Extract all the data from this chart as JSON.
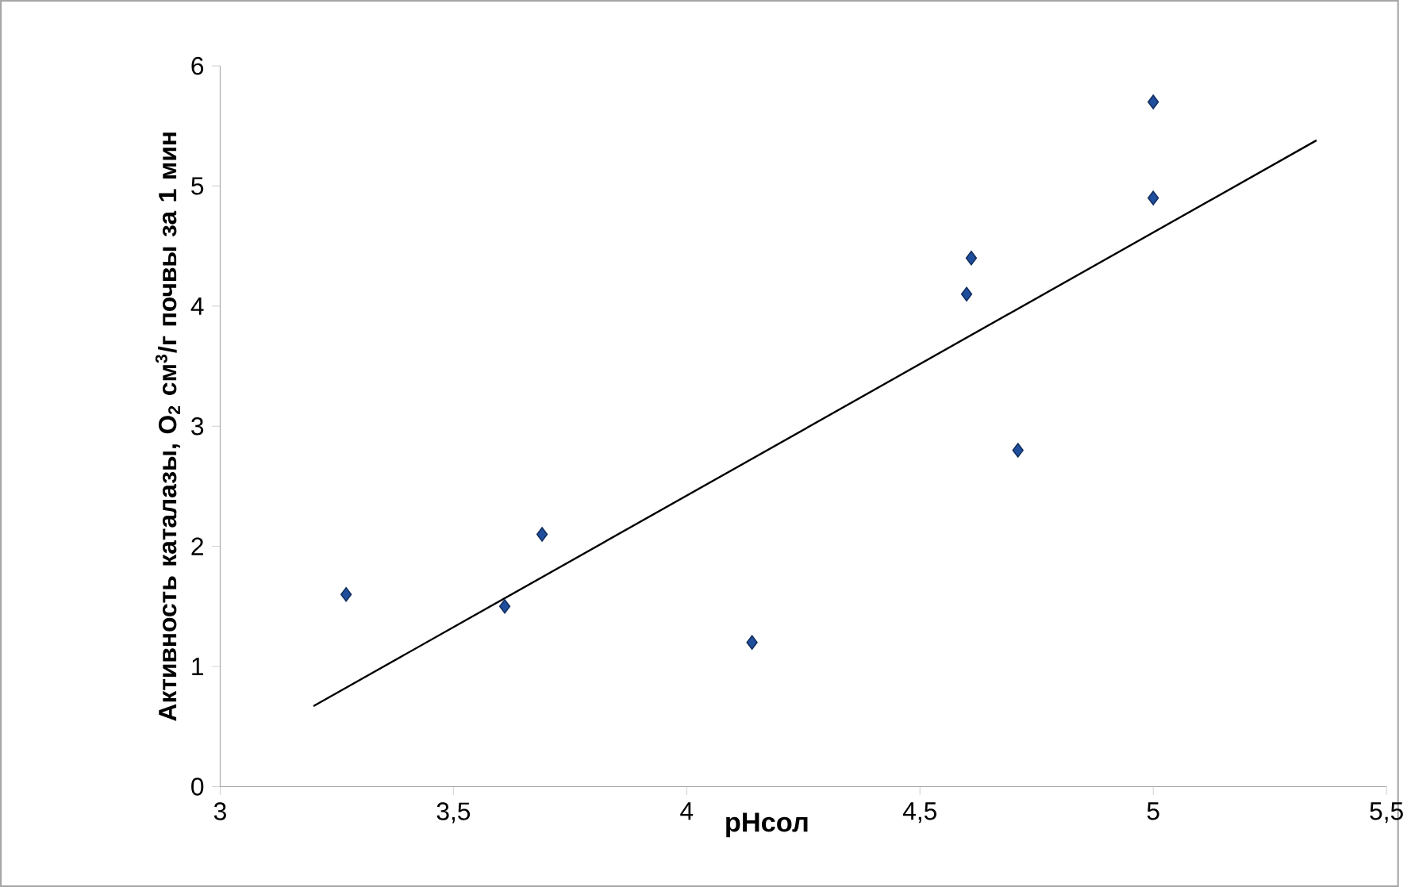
{
  "chart_data": {
    "type": "scatter",
    "xlabel": "pHсол",
    "ylabel": "Активность каталазы, O$_{2}$ см$^{3}$/г почвы за 1 мин",
    "xlim": [
      3,
      5.5
    ],
    "xticks": [
      3,
      {
        "value": 3.5,
        "label": "3,5"
      },
      4,
      {
        "value": 4.5,
        "label": "4,5"
      },
      5,
      {
        "value": 5.5,
        "label": "5,5"
      }
    ],
    "ylim": [
      0,
      6
    ],
    "yticks": [
      0,
      1,
      2,
      3,
      4,
      5,
      6
    ],
    "grid": false,
    "series": [
      {
        "color": "#1f4e9c",
        "marker": "diamond",
        "x": [
          3.27,
          3.61,
          3.69,
          4.14,
          4.6,
          4.61,
          4.71,
          5.0,
          5.0
        ],
        "values": [
          1.6,
          1.5,
          2.1,
          1.2,
          4.1,
          4.4,
          2.8,
          4.9,
          5.7
        ]
      },
      {
        "type": "line",
        "color": "#000000",
        "marker": "none",
        "line_style": "solid",
        "x": [
          3.2,
          5.35
        ],
        "values": [
          0.67,
          5.38
        ]
      }
    ]
  }
}
